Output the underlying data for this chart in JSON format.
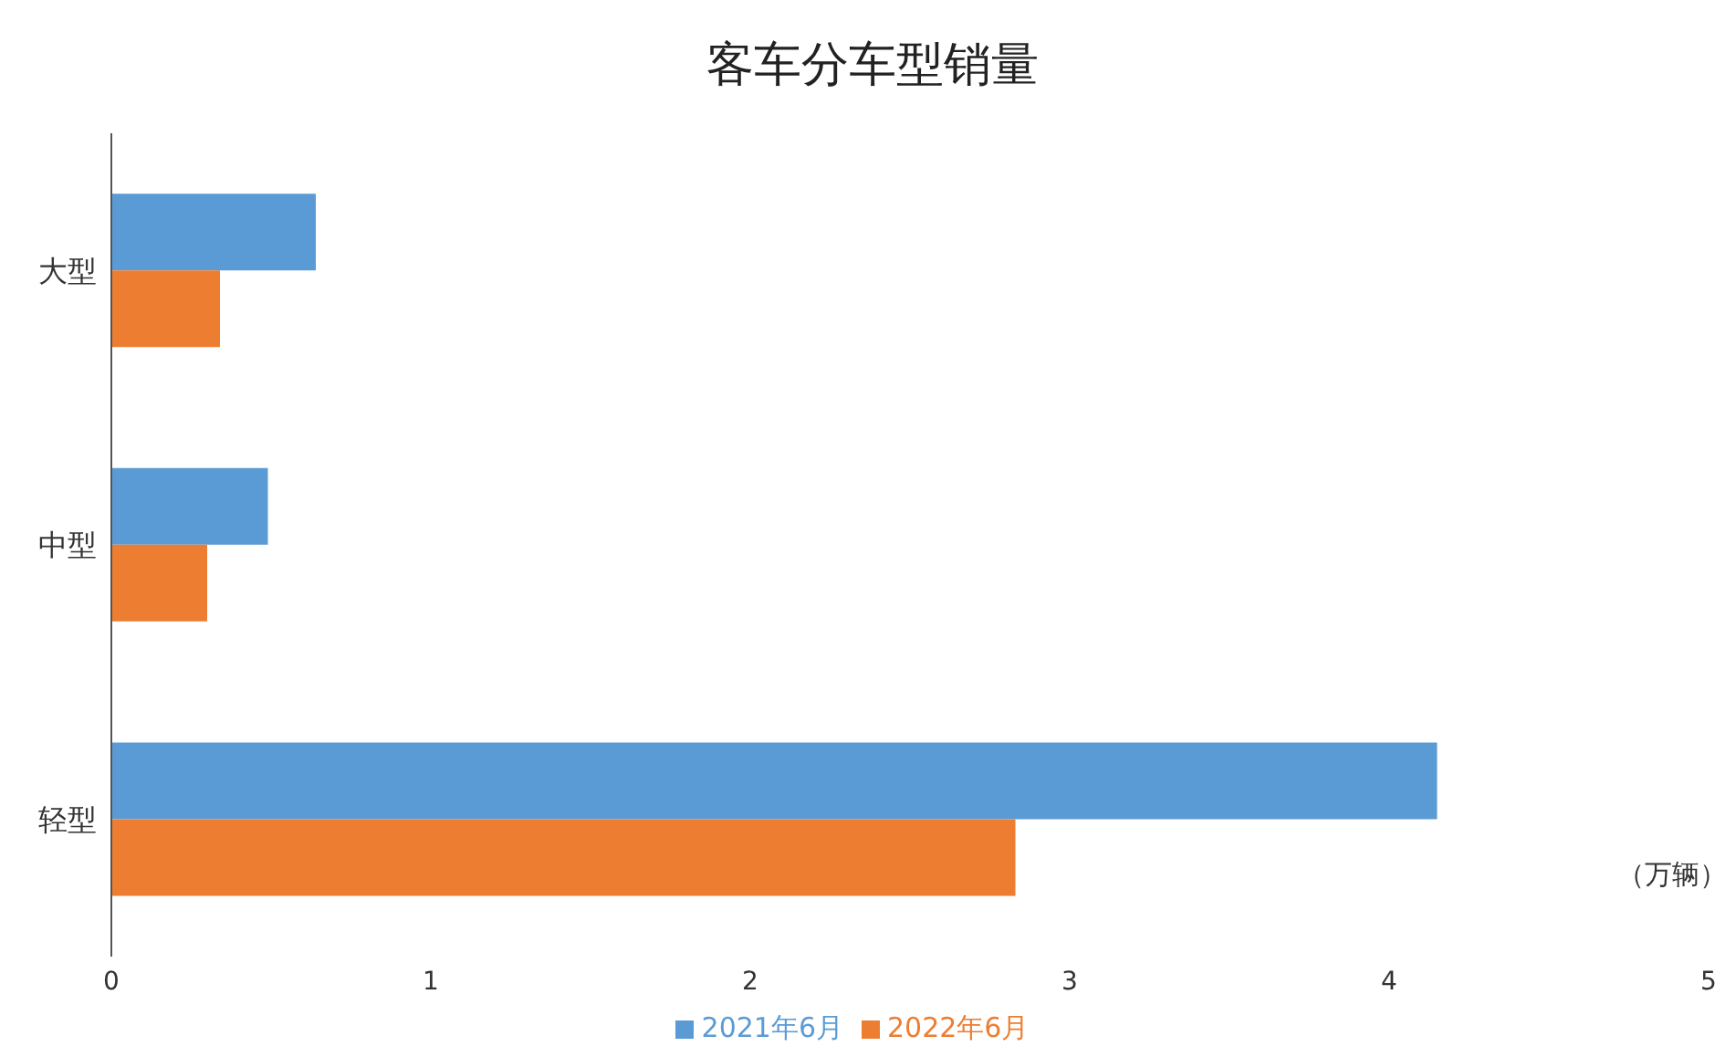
{
  "chart_data": {
    "type": "bar",
    "title": "客车分车型销量",
    "orientation": "horizontal",
    "categories": [
      "大型",
      "中型",
      "轻型"
    ],
    "series": [
      {
        "name": "2021年6月",
        "color": "#5b9bd5",
        "values": [
          0.64,
          0.49,
          4.15
        ]
      },
      {
        "name": "2022年6月",
        "color": "#ed7d31",
        "values": [
          0.34,
          0.3,
          2.83
        ]
      }
    ],
    "xlabel": "（万辆）",
    "xlim": [
      0,
      5
    ],
    "xticks": [
      0,
      1,
      2,
      3,
      4,
      5
    ],
    "grid": false,
    "legend": "bottom"
  }
}
